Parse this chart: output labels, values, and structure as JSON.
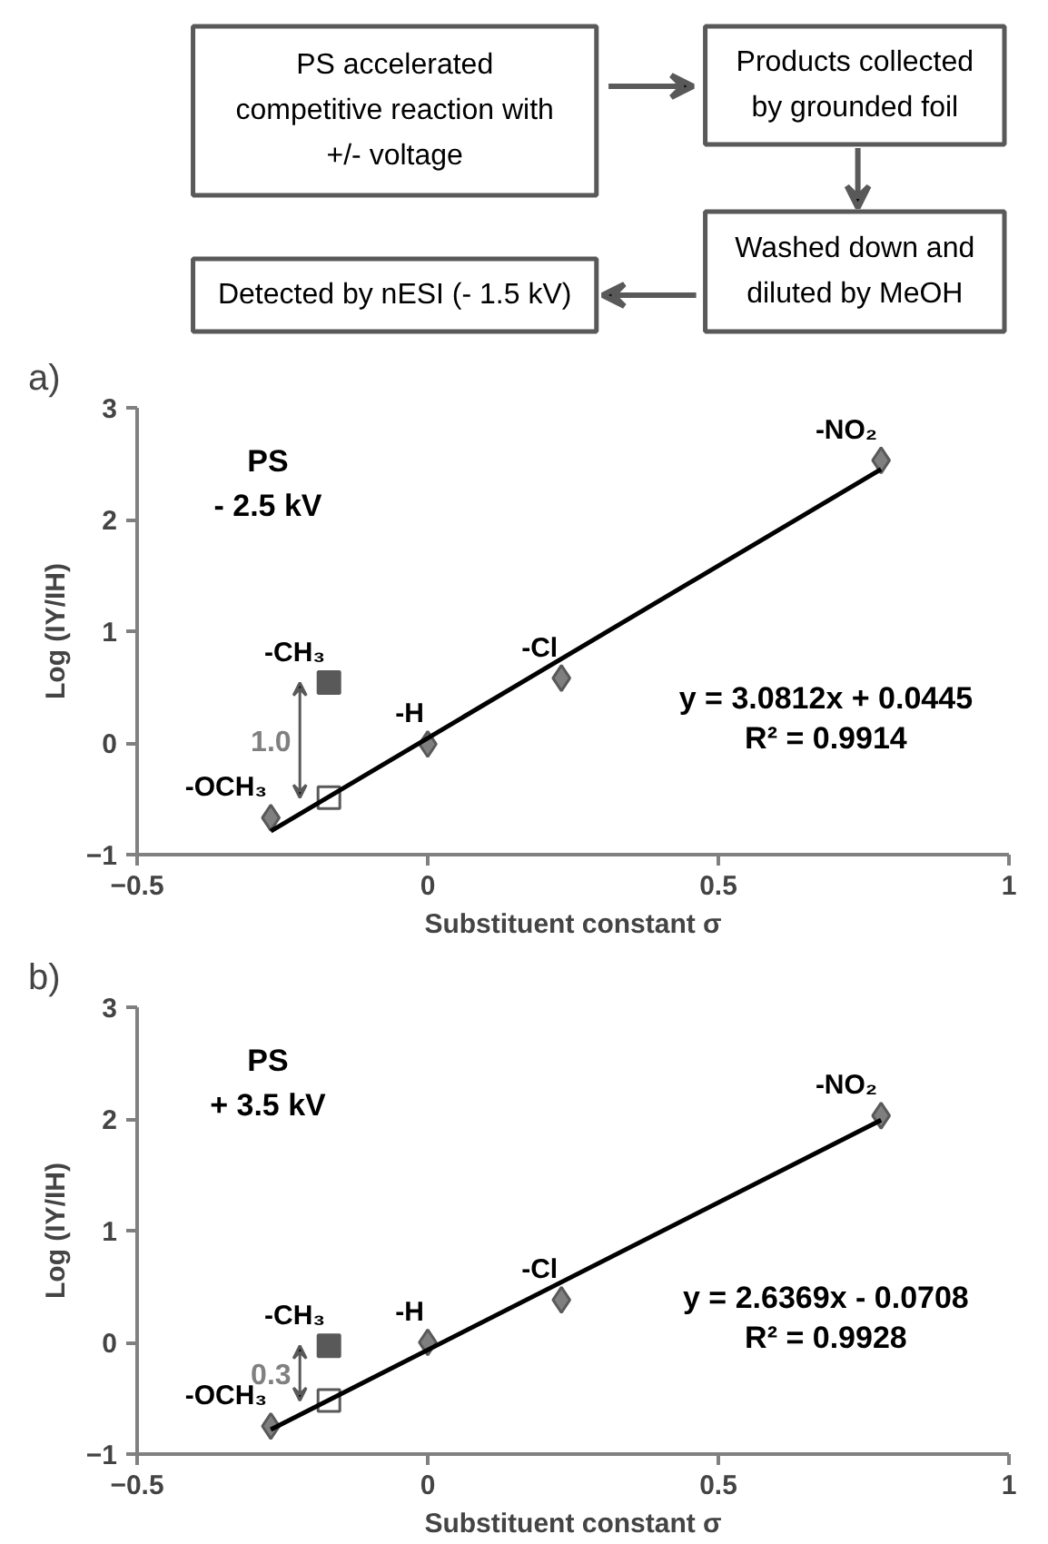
{
  "chart_data": [
    {
      "type": "other",
      "annotations": [
        "PS accelerated\ncompetitive reaction with\n+/- voltage",
        "Products collected\nby grounded foil",
        "Washed down and\ndiluted by MeOH",
        "Detected by nESI (- 1.5 kV)"
      ]
    },
    {
      "type": "scatter",
      "title": "a)",
      "xlabel": "Substituent constant σ",
      "ylabel": "Log (IY/IH)",
      "xlim": [
        -0.5,
        1
      ],
      "ylim": [
        -1,
        3
      ],
      "xticks": [
        -0.5,
        0,
        0.5,
        1
      ],
      "yticks": [
        -1,
        0,
        1,
        2,
        3
      ],
      "series": [
        {
          "type": "scatter",
          "marker": "diamond",
          "color": "#7f7f7f",
          "x": [
            -0.27,
            0,
            0.23,
            0.78
          ],
          "values": [
            -0.67,
            -0.01,
            0.58,
            2.53
          ]
        },
        {
          "type": "scatter",
          "marker": "square",
          "color": "#595959",
          "x": [
            -0.17
          ],
          "values": [
            0.54
          ]
        },
        {
          "type": "scatter",
          "marker": "square",
          "color": "#ffffff",
          "x": [
            -0.17
          ],
          "values": [
            -0.49
          ]
        },
        {
          "type": "line",
          "marker": "none",
          "color": "#000000",
          "x": [
            -0.27,
            0.78
          ],
          "values": [
            -0.79,
            2.45
          ]
        }
      ],
      "annotations": [
        "PS",
        "- 2.5 kV",
        "y = 3.0812x + 0.0445",
        "R² = 0.9914",
        "1.0",
        {
          "text": "-OCH₃",
          "x": -0.27,
          "y": -0.67
        },
        {
          "text": "-CH₃",
          "x": -0.17,
          "y": 0.54
        },
        {
          "text": "-H",
          "x": 0,
          "y": -0.01
        },
        {
          "text": "-Cl",
          "x": 0.23,
          "y": 0.58
        },
        {
          "text": "-NO₂",
          "x": 0.78,
          "y": 2.53
        }
      ]
    },
    {
      "type": "scatter",
      "title": "b)",
      "xlabel": "Substituent constant σ",
      "ylabel": "Log (IY/IH)",
      "xlim": [
        -0.5,
        1
      ],
      "ylim": [
        -1,
        3
      ],
      "xticks": [
        -0.5,
        0,
        0.5,
        1
      ],
      "yticks": [
        -1,
        0,
        1,
        2,
        3
      ],
      "series": [
        {
          "type": "scatter",
          "marker": "diamond",
          "color": "#7f7f7f",
          "x": [
            -0.27,
            0,
            0.23,
            0.78
          ],
          "values": [
            -0.75,
            0,
            0.38,
            2.03
          ]
        },
        {
          "type": "scatter",
          "marker": "square",
          "color": "#595959",
          "x": [
            -0.17
          ],
          "values": [
            -0.03
          ]
        },
        {
          "type": "scatter",
          "marker": "square",
          "color": "#ffffff",
          "x": [
            -0.17
          ],
          "values": [
            -0.52
          ]
        },
        {
          "type": "line",
          "marker": "none",
          "color": "#000000",
          "x": [
            -0.27,
            0.78
          ],
          "values": [
            -0.78,
            1.99
          ]
        }
      ],
      "annotations": [
        "PS",
        "+ 3.5 kV",
        "y = 2.6369x - 0.0708",
        "R² = 0.9928",
        "0.3",
        {
          "text": "-OCH₃",
          "x": -0.27,
          "y": -0.75
        },
        {
          "text": "-CH₃",
          "x": -0.17,
          "y": -0.03
        },
        {
          "text": "-H",
          "x": 0,
          "y": 0
        },
        {
          "text": "-Cl",
          "x": 0.23,
          "y": 0.38
        },
        {
          "text": "-NO₂",
          "x": 0.78,
          "y": 2.03
        }
      ]
    }
  ]
}
